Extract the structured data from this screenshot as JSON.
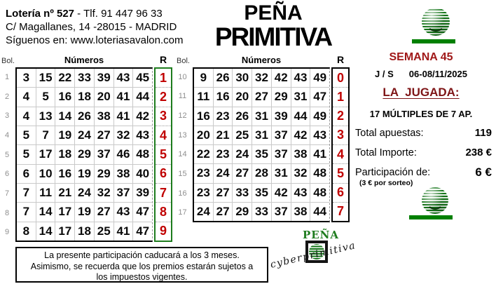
{
  "shop": {
    "name": "Lotería nº 527",
    "phone": " - Tlf. 91 447 96 33",
    "address": "C/ Magallanes, 14  -28015 - MADRID",
    "follow": "Síguenos en: www.loteriasavalon.com"
  },
  "title": {
    "line1": "PEÑA",
    "line2": "PRIMITIVA"
  },
  "info_panel": {
    "week": "SEMANA 45",
    "days": "J / S",
    "dates": "06-08/11/2025",
    "jugada_title": "LA JUGADA:",
    "jugada_detail": "17 MÚLTIPLES DE 7 AP.",
    "rows": [
      {
        "label": "Total apuestas:",
        "value": "119"
      },
      {
        "label": "Total Importe:",
        "value": "238 €"
      },
      {
        "label": "Participación de:",
        "value": "6 €",
        "sub": "(3 € por sorteo)"
      }
    ]
  },
  "tables": [
    {
      "bol_header": "Bol.",
      "numbers_header": "Números",
      "r_header": "R",
      "rows": [
        {
          "bol": "1",
          "numbers": [
            "3",
            "15",
            "22",
            "33",
            "39",
            "43",
            "45"
          ],
          "r": "1"
        },
        {
          "bol": "2",
          "numbers": [
            "4",
            "5",
            "16",
            "18",
            "20",
            "41",
            "44"
          ],
          "r": "2"
        },
        {
          "bol": "3",
          "numbers": [
            "4",
            "13",
            "14",
            "26",
            "38",
            "41",
            "42"
          ],
          "r": "3"
        },
        {
          "bol": "4",
          "numbers": [
            "5",
            "7",
            "19",
            "24",
            "27",
            "32",
            "43"
          ],
          "r": "4"
        },
        {
          "bol": "5",
          "numbers": [
            "5",
            "17",
            "18",
            "29",
            "37",
            "46",
            "48"
          ],
          "r": "5"
        },
        {
          "bol": "6",
          "numbers": [
            "6",
            "10",
            "16",
            "19",
            "29",
            "38",
            "40"
          ],
          "r": "6"
        },
        {
          "bol": "7",
          "numbers": [
            "7",
            "11",
            "21",
            "24",
            "32",
            "37",
            "39"
          ],
          "r": "7"
        },
        {
          "bol": "8",
          "numbers": [
            "7",
            "14",
            "17",
            "19",
            "27",
            "43",
            "47"
          ],
          "r": "8"
        },
        {
          "bol": "9",
          "numbers": [
            "8",
            "14",
            "17",
            "18",
            "25",
            "41",
            "47"
          ],
          "r": "9"
        }
      ]
    },
    {
      "bol_header": "Bol.",
      "numbers_header": "Números",
      "r_header": "R",
      "rows": [
        {
          "bol": "10",
          "numbers": [
            "9",
            "26",
            "30",
            "32",
            "42",
            "43",
            "49"
          ],
          "r": "0"
        },
        {
          "bol": "11",
          "numbers": [
            "11",
            "16",
            "20",
            "27",
            "29",
            "31",
            "47"
          ],
          "r": "1"
        },
        {
          "bol": "12",
          "numbers": [
            "16",
            "23",
            "26",
            "31",
            "39",
            "44",
            "49"
          ],
          "r": "2"
        },
        {
          "bol": "13",
          "numbers": [
            "20",
            "21",
            "25",
            "31",
            "37",
            "42",
            "43"
          ],
          "r": "3"
        },
        {
          "bol": "14",
          "numbers": [
            "22",
            "23",
            "24",
            "35",
            "37",
            "38",
            "41"
          ],
          "r": "4"
        },
        {
          "bol": "15",
          "numbers": [
            "23",
            "24",
            "27",
            "28",
            "31",
            "32",
            "48"
          ],
          "r": "5"
        },
        {
          "bol": "16",
          "numbers": [
            "23",
            "27",
            "33",
            "35",
            "42",
            "43",
            "48"
          ],
          "r": "6"
        },
        {
          "bol": "17",
          "numbers": [
            "24",
            "27",
            "29",
            "33",
            "37",
            "38",
            "44"
          ],
          "r": "7"
        }
      ]
    }
  ],
  "footer": {
    "disclaimer": "La presente participación caducará a los 3 meses. Asimismo, se recuerda que los premios estarán sujetos a los impuestos vigentes."
  },
  "branding": {
    "pena": "PEÑA",
    "script": "cyberprimitiva"
  },
  "colors": {
    "reintegro_red": "#c00000",
    "week_red": "#a01818",
    "jugada_maroon": "#7e1416",
    "logo_green": "#1e7c1e",
    "bar_green": "#008000"
  }
}
